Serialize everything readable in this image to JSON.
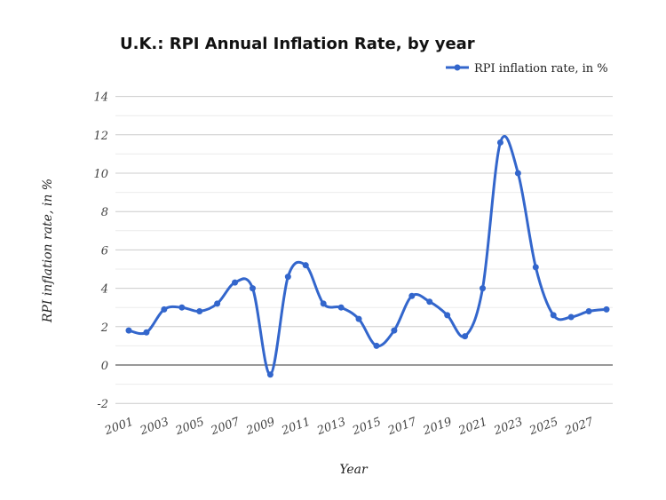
{
  "chart_data": {
    "type": "line",
    "title": "U.K.: RPI Annual Inflation Rate, by year",
    "xlabel": "Year",
    "ylabel": "RPI inflation rate, in %",
    "ylim": [
      -2,
      14
    ],
    "yticks": [
      "-2",
      "0",
      "2",
      "4",
      "6",
      "8",
      "10",
      "12",
      "14"
    ],
    "xticks": [
      "2001",
      "2003",
      "2005",
      "2007",
      "2009",
      "2011",
      "2013",
      "2015",
      "2017",
      "2019",
      "2021",
      "2023",
      "2025",
      "2027"
    ],
    "grid": true,
    "legend_position": "top-right",
    "series_color": "#3366cc",
    "x": [
      2001,
      2002,
      2003,
      2004,
      2005,
      2006,
      2007,
      2008,
      2009,
      2010,
      2011,
      2012,
      2013,
      2014,
      2015,
      2016,
      2017,
      2018,
      2019,
      2020,
      2021,
      2022,
      2023,
      2024,
      2025,
      2026,
      2027,
      2028
    ],
    "series": [
      {
        "name": "RPI inflation rate, in %",
        "values": [
          1.8,
          1.7,
          2.9,
          3.0,
          2.8,
          3.2,
          4.3,
          4.0,
          -0.5,
          4.6,
          5.2,
          3.2,
          3.0,
          2.4,
          1.0,
          1.8,
          3.6,
          3.3,
          2.6,
          1.5,
          4.0,
          11.6,
          10.0,
          5.1,
          2.6,
          2.5,
          2.8,
          2.9
        ]
      }
    ]
  }
}
